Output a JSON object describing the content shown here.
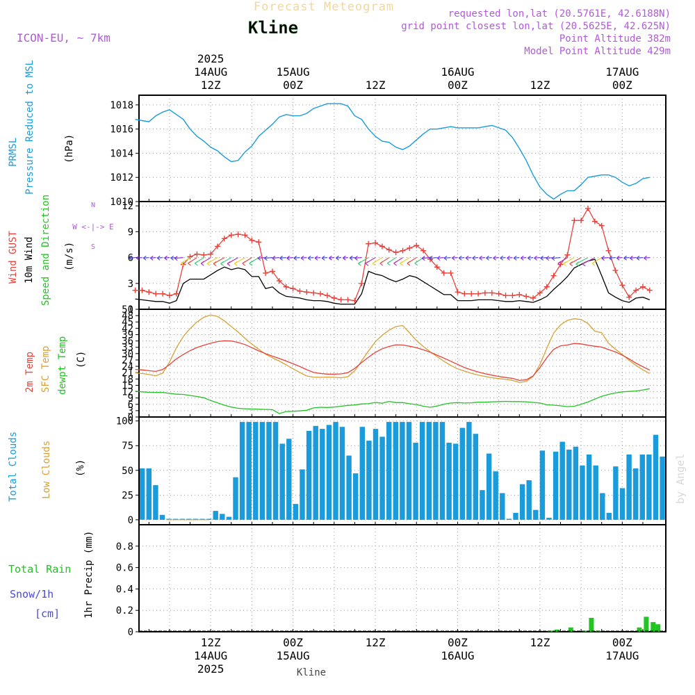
{
  "header": {
    "product": "Forecast Meteogram",
    "location": "Kline",
    "model": "ICON-EU, ~ 7km",
    "requested": "requested lon,lat (20.5761E, 42.6188N)",
    "gridpoint": "grid point closest lon,lat (20.5625E, 42.625N)",
    "point_alt": "Point Altitude 382m",
    "model_alt": "Model Point Altitude 429m",
    "credit": "by Angel",
    "footer_location": "Kline"
  },
  "colors": {
    "pressure": "#1a9bdc",
    "gust": "#e8413a",
    "wind": "#000000",
    "temp": "#e8413a",
    "sfc": "#d9a035",
    "dewpt": "#22c322",
    "clouds": "#1a9bdc",
    "low": "#d9a035",
    "rain": "#22c322",
    "snow": "#4a4ad8",
    "meta": "#b05ad8"
  },
  "time_axis": {
    "top_labels": [
      {
        "h": 12,
        "lines": [
          "2025",
          "14AUG",
          "12Z"
        ]
      },
      {
        "h": 24,
        "lines": [
          "15AUG",
          "00Z"
        ]
      },
      {
        "h": 36,
        "lines": [
          "12Z"
        ]
      },
      {
        "h": 48,
        "lines": [
          "16AUG",
          "00Z"
        ]
      },
      {
        "h": 60,
        "lines": [
          "12Z"
        ]
      },
      {
        "h": 72,
        "lines": [
          "17AUG",
          "00Z"
        ]
      }
    ],
    "bottom_labels": [
      {
        "h": 12,
        "lines": [
          "12Z",
          "14AUG",
          "2025"
        ]
      },
      {
        "h": 24,
        "lines": [
          "00Z",
          "15AUG"
        ]
      },
      {
        "h": 36,
        "lines": [
          "12Z"
        ]
      },
      {
        "h": 48,
        "lines": [
          "00Z",
          "16AUG"
        ]
      },
      {
        "h": 60,
        "lines": [
          "12Z"
        ]
      },
      {
        "h": 72,
        "lines": [
          "00Z",
          "17AUG"
        ]
      }
    ]
  },
  "panels": {
    "pressure": {
      "labels": [
        "PRMSL",
        "Pressure Reduced to MSL"
      ],
      "unit": "(hPa)"
    },
    "wind": {
      "labels": [
        "Wind GUST",
        "10m Wind",
        "Speed and Direction"
      ],
      "unit": "(m/s)",
      "compass": [
        "N",
        "W <-|-> E",
        "S"
      ]
    },
    "temp": {
      "labels": [
        "2m Temp",
        "SFC Temp",
        "dewpt Temp"
      ],
      "unit": "(C)"
    },
    "clouds": {
      "labels": [
        "Total Clouds",
        "Low Clouds"
      ],
      "unit": "(%)"
    },
    "precip": {
      "labels": [
        "Total Rain",
        "Snow/1h",
        "[cm]"
      ],
      "unit": "1hr Precip (mm)"
    }
  },
  "chart_data": [
    {
      "type": "line",
      "name": "pressure",
      "ylim": [
        1010,
        1018.8
      ],
      "yticks": [
        1010,
        1012,
        1014,
        1016,
        1018
      ],
      "x": [
        1,
        2,
        3,
        4,
        5,
        6,
        7,
        8,
        9,
        10,
        11,
        12,
        13,
        14,
        15,
        16,
        17,
        18,
        19,
        20,
        21,
        22,
        23,
        24,
        25,
        26,
        27,
        28,
        29,
        30,
        31,
        32,
        33,
        34,
        35,
        36,
        37,
        38,
        39,
        40,
        41,
        42,
        43,
        44,
        45,
        46,
        47,
        48,
        49,
        50,
        51,
        52,
        53,
        54,
        55,
        56,
        57,
        58,
        59,
        60,
        61,
        62,
        63,
        64,
        65,
        66,
        67,
        68,
        69,
        70,
        71,
        72,
        73,
        74,
        75,
        76
      ],
      "series": [
        {
          "name": "PRMSL",
          "values": [
            1016.8,
            1016.7,
            1016.6,
            1017.1,
            1017.4,
            1017.6,
            1017.2,
            1016.8,
            1016.0,
            1015.4,
            1015.0,
            1014.5,
            1014.2,
            1013.7,
            1013.3,
            1013.4,
            1014.1,
            1014.6,
            1015.4,
            1015.9,
            1016.4,
            1017.0,
            1017.2,
            1017.1,
            1017.1,
            1017.3,
            1017.7,
            1017.9,
            1018.1,
            1018.1,
            1018.1,
            1017.9,
            1017.1,
            1016.8,
            1016.0,
            1015.4,
            1015.0,
            1014.9,
            1014.5,
            1014.3,
            1014.6,
            1015.1,
            1015.6,
            1016.0,
            1016.0,
            1016.1,
            1016.2,
            1016.1,
            1016.1,
            1016.1,
            1016.1,
            1016.2,
            1016.3,
            1016.1,
            1015.9,
            1015.3,
            1014.4,
            1013.4,
            1012.2,
            1011.2,
            1010.6,
            1010.2,
            1010.6,
            1010.9,
            1010.9,
            1011.4,
            1012.0,
            1012.1,
            1012.2,
            1012.2,
            1012.0,
            1011.6,
            1011.3,
            1011.5,
            1011.9,
            1012.0
          ]
        }
      ]
    },
    {
      "type": "line",
      "name": "wind",
      "ylim": [
        0,
        12.5
      ],
      "yticks": [
        0,
        3,
        6,
        9,
        12
      ],
      "x": [
        1,
        2,
        3,
        4,
        5,
        6,
        7,
        8,
        9,
        10,
        11,
        12,
        13,
        14,
        15,
        16,
        17,
        18,
        19,
        20,
        21,
        22,
        23,
        24,
        25,
        26,
        27,
        28,
        29,
        30,
        31,
        32,
        33,
        34,
        35,
        36,
        37,
        38,
        39,
        40,
        41,
        42,
        43,
        44,
        45,
        46,
        47,
        48,
        49,
        50,
        51,
        52,
        53,
        54,
        55,
        56,
        57,
        58,
        59,
        60,
        61,
        62,
        63,
        64,
        65,
        66,
        67,
        68,
        69,
        70,
        71,
        72,
        73,
        74,
        75,
        76
      ],
      "series": [
        {
          "name": "Wind GUST",
          "values": [
            2.2,
            2.2,
            2.0,
            1.8,
            1.8,
            1.6,
            1.8,
            5.2,
            6.1,
            6.4,
            6.3,
            6.4,
            7.3,
            8.2,
            8.6,
            8.7,
            8.6,
            8.0,
            7.8,
            4.2,
            4.4,
            3.3,
            2.6,
            2.4,
            2.1,
            2.0,
            1.9,
            1.8,
            1.6,
            1.3,
            1.1,
            1.1,
            1.0,
            3.0,
            7.6,
            7.7,
            7.3,
            6.9,
            6.6,
            6.8,
            7.1,
            7.4,
            6.8,
            5.8,
            4.9,
            4.2,
            4.2,
            2.0,
            1.8,
            1.8,
            1.8,
            1.9,
            1.9,
            1.8,
            1.6,
            1.6,
            1.7,
            1.5,
            1.3,
            1.9,
            2.6,
            3.9,
            5.2,
            6.3,
            10.3,
            10.3,
            11.7,
            10.2,
            9.7,
            6.8,
            4.5,
            2.8,
            1.4,
            2.2,
            2.6,
            2.2
          ]
        },
        {
          "name": "10m Wind",
          "values": [
            1.2,
            1.1,
            1.0,
            0.9,
            0.9,
            0.7,
            1.0,
            3.0,
            3.5,
            3.5,
            3.5,
            4.0,
            4.5,
            4.9,
            4.6,
            4.8,
            4.6,
            3.8,
            3.8,
            2.4,
            2.6,
            1.9,
            1.5,
            1.4,
            1.3,
            1.1,
            1.0,
            1.0,
            0.9,
            0.7,
            0.6,
            0.6,
            0.6,
            1.8,
            4.4,
            4.1,
            3.9,
            3.5,
            3.2,
            3.5,
            3.9,
            3.7,
            3.2,
            2.7,
            2.2,
            1.7,
            1.7,
            1.0,
            1.0,
            1.0,
            1.1,
            1.1,
            1.1,
            1.0,
            0.9,
            0.9,
            1.0,
            0.9,
            0.8,
            1.1,
            1.5,
            2.3,
            3.0,
            3.8,
            4.8,
            5.2,
            5.6,
            5.8,
            3.9,
            1.9,
            1.4,
            1.0,
            0.8,
            1.3,
            1.4,
            1.1
          ]
        }
      ]
    },
    {
      "type": "line",
      "name": "temperature",
      "ylim": [
        0,
        51
      ],
      "yticks": [
        0,
        3,
        6,
        9,
        12,
        15,
        18,
        21,
        24,
        27,
        30,
        33,
        36,
        39,
        42,
        45,
        48,
        51
      ],
      "x": [
        1,
        2,
        3,
        4,
        5,
        6,
        7,
        8,
        9,
        10,
        11,
        12,
        13,
        14,
        15,
        16,
        17,
        18,
        19,
        20,
        21,
        22,
        23,
        24,
        25,
        26,
        27,
        28,
        29,
        30,
        31,
        32,
        33,
        34,
        35,
        36,
        37,
        38,
        39,
        40,
        41,
        42,
        43,
        44,
        45,
        46,
        47,
        48,
        49,
        50,
        51,
        52,
        53,
        54,
        55,
        56,
        57,
        58,
        59,
        60,
        61,
        62,
        63,
        64,
        65,
        66,
        67,
        68,
        69,
        70,
        71,
        72,
        73,
        74,
        75,
        76
      ],
      "series": [
        {
          "name": "2m Temp",
          "values": [
            22.5,
            22.3,
            21.9,
            21.6,
            22.5,
            24.8,
            27.5,
            29.6,
            31.4,
            32.9,
            34.0,
            34.9,
            35.7,
            36.1,
            36.0,
            35.3,
            34.3,
            32.8,
            31.3,
            30.0,
            28.8,
            27.7,
            26.5,
            25.2,
            23.9,
            22.4,
            21.1,
            20.6,
            20.3,
            20.3,
            20.4,
            21.0,
            23.0,
            25.8,
            28.3,
            30.6,
            32.3,
            33.4,
            34.2,
            34.1,
            33.5,
            32.8,
            31.8,
            30.7,
            29.3,
            27.9,
            26.4,
            24.9,
            23.4,
            22.3,
            21.3,
            20.5,
            19.8,
            19.2,
            18.7,
            18.3,
            17.3,
            17.6,
            19.4,
            23.4,
            28.1,
            32.0,
            33.7,
            34.1,
            34.8,
            34.6,
            34.0,
            33.5,
            33.1,
            31.9,
            30.8,
            29.3,
            27.5,
            25.5,
            23.8,
            22.2
          ]
        },
        {
          "name": "SFC Temp",
          "values": [
            20.9,
            20.6,
            20.1,
            19.5,
            20.8,
            26.0,
            32.8,
            38.1,
            41.9,
            45.0,
            47.2,
            48.3,
            47.6,
            45.5,
            42.8,
            40.2,
            37.2,
            34.5,
            32.1,
            29.7,
            28.0,
            26.5,
            24.7,
            22.8,
            21.1,
            19.4,
            18.9,
            18.8,
            18.9,
            18.8,
            18.6,
            19.1,
            21.8,
            26.6,
            31.3,
            35.6,
            38.7,
            41.1,
            42.8,
            43.3,
            39.8,
            36.2,
            33.4,
            30.9,
            28.6,
            26.4,
            24.4,
            22.8,
            21.7,
            20.7,
            19.8,
            19.2,
            18.6,
            18.2,
            17.8,
            17.3,
            16.4,
            16.8,
            19.2,
            24.9,
            32.6,
            39.7,
            43.6,
            45.8,
            46.5,
            46.2,
            44.3,
            40.6,
            39.9,
            34.9,
            32.1,
            29.6,
            26.8,
            24.4,
            22.3,
            20.6
          ]
        },
        {
          "name": "dewpt Temp",
          "values": [
            12.2,
            11.9,
            11.7,
            11.6,
            11.6,
            11.2,
            10.8,
            10.7,
            10.2,
            9.7,
            9.1,
            7.8,
            6.7,
            5.6,
            4.7,
            4.1,
            3.9,
            3.8,
            3.7,
            3.6,
            3.5,
            1.6,
            2.6,
            2.7,
            2.9,
            3.2,
            4.3,
            4.6,
            4.5,
            4.7,
            5.1,
            5.5,
            5.7,
            6.2,
            6.3,
            6.9,
            6.5,
            7.4,
            6.8,
            6.8,
            6.3,
            5.9,
            5.1,
            4.6,
            5.2,
            6.1,
            6.6,
            6.8,
            6.6,
            6.7,
            7.0,
            7.0,
            7.2,
            7.3,
            7.4,
            7.3,
            7.3,
            7.2,
            6.9,
            6.6,
            5.8,
            5.6,
            5.3,
            4.9,
            5.1,
            6.0,
            7.1,
            8.5,
            9.8,
            10.7,
            11.4,
            11.9,
            12.1,
            12.3,
            12.8,
            13.4
          ]
        }
      ]
    },
    {
      "type": "bar",
      "name": "clouds",
      "ylim": [
        -5,
        104
      ],
      "yticks": [
        0,
        25,
        50,
        75,
        100
      ],
      "series": [
        {
          "name": "Total Clouds",
          "values": [
            52,
            52,
            35,
            5,
            1,
            1,
            1,
            1,
            1,
            1,
            1,
            9,
            6,
            3,
            43,
            99,
            99,
            99,
            99,
            99,
            99,
            77,
            82,
            16,
            51,
            90,
            95,
            92,
            96,
            99,
            94,
            65,
            47,
            94,
            80,
            92,
            84,
            99,
            99,
            99,
            99,
            78,
            99,
            99,
            99,
            99,
            78,
            77,
            93,
            99,
            87,
            30,
            67,
            49,
            27,
            1,
            7,
            36,
            40,
            10,
            70,
            2,
            69,
            79,
            71,
            74,
            55,
            66,
            55,
            27,
            7,
            54,
            32,
            66,
            52,
            66,
            66,
            86,
            64
          ]
        },
        {
          "name": "Low Clouds",
          "values": [
            0,
            0,
            0,
            0,
            0,
            0,
            0,
            0,
            0,
            0,
            0,
            0,
            0,
            0,
            0,
            0,
            0,
            0,
            0,
            0,
            0,
            0,
            0,
            0,
            0,
            0,
            0,
            0,
            0,
            0,
            0,
            0,
            0,
            0,
            0,
            0,
            0,
            0,
            0,
            0,
            0,
            0,
            0,
            0,
            0,
            0,
            0,
            0,
            0,
            0,
            0,
            0,
            0,
            0,
            0,
            0,
            0,
            0,
            0,
            0,
            0,
            0,
            0,
            0,
            0,
            0,
            0,
            0,
            0,
            0,
            0,
            0,
            0,
            0,
            0,
            0,
            0,
            0,
            0
          ]
        }
      ]
    },
    {
      "type": "bar",
      "name": "precipitation",
      "ylim": [
        0,
        1.0
      ],
      "yticks": [
        0,
        0.2,
        0.4,
        0.6,
        0.8
      ],
      "ytick_labels": [
        "0",
        "0.2",
        "0.4",
        "0.6",
        "0.8"
      ],
      "bars": [
        {
          "x": 61.5,
          "value": 0.01
        },
        {
          "x": 62.5,
          "value": 0.02
        },
        {
          "x": 64.5,
          "value": 0.04
        },
        {
          "x": 66.5,
          "value": 0.01
        },
        {
          "x": 67.5,
          "value": 0.13
        },
        {
          "x": 68.5,
          "value": 0.01
        },
        {
          "x": 74.5,
          "value": 0.04
        },
        {
          "x": 75.5,
          "value": 0.14
        },
        {
          "x": 76.5,
          "value": 0.09
        },
        {
          "x": 77.2,
          "value": 0.07
        }
      ]
    }
  ]
}
